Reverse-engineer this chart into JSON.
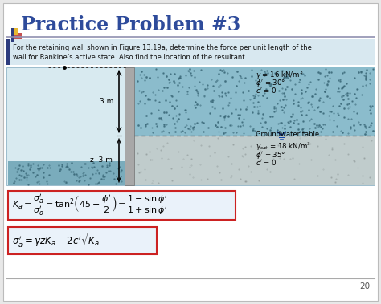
{
  "title": "Practice Problem #3",
  "title_color": "#2E4B9B",
  "title_fontsize": 17,
  "bg_color": "#E8E8E8",
  "slide_bg": "#FFFFFF",
  "problem_text_line1": "For the retaining wall shown in Figure 13.19a, determine the force per unit length of the",
  "problem_text_line2": "wall for Rankine’s active state. Also find the location of the resultant.",
  "problem_bg": "#D8E8F0",
  "problem_border": "#3A5A9C",
  "formula_box_color": "#CC2222",
  "page_num": "20",
  "accent_yellow": "#E8B830",
  "accent_red": "#BB3333",
  "accent_blue": "#2E3C7E",
  "wall_color": "#A8A8A8",
  "upper_soil_color": "#8BBCCC",
  "lower_soil_color": "#C8C8C8",
  "left_bottom_soil_color": "#7AACBC",
  "dot_color_upper": "#5A8A9C",
  "dot_color_lower": "#888888",
  "diag_bg": "#D8EAF0",
  "diag_border": "#9BBCCC",
  "gw_line_color": "#444444",
  "dim_line_color": "#111111"
}
